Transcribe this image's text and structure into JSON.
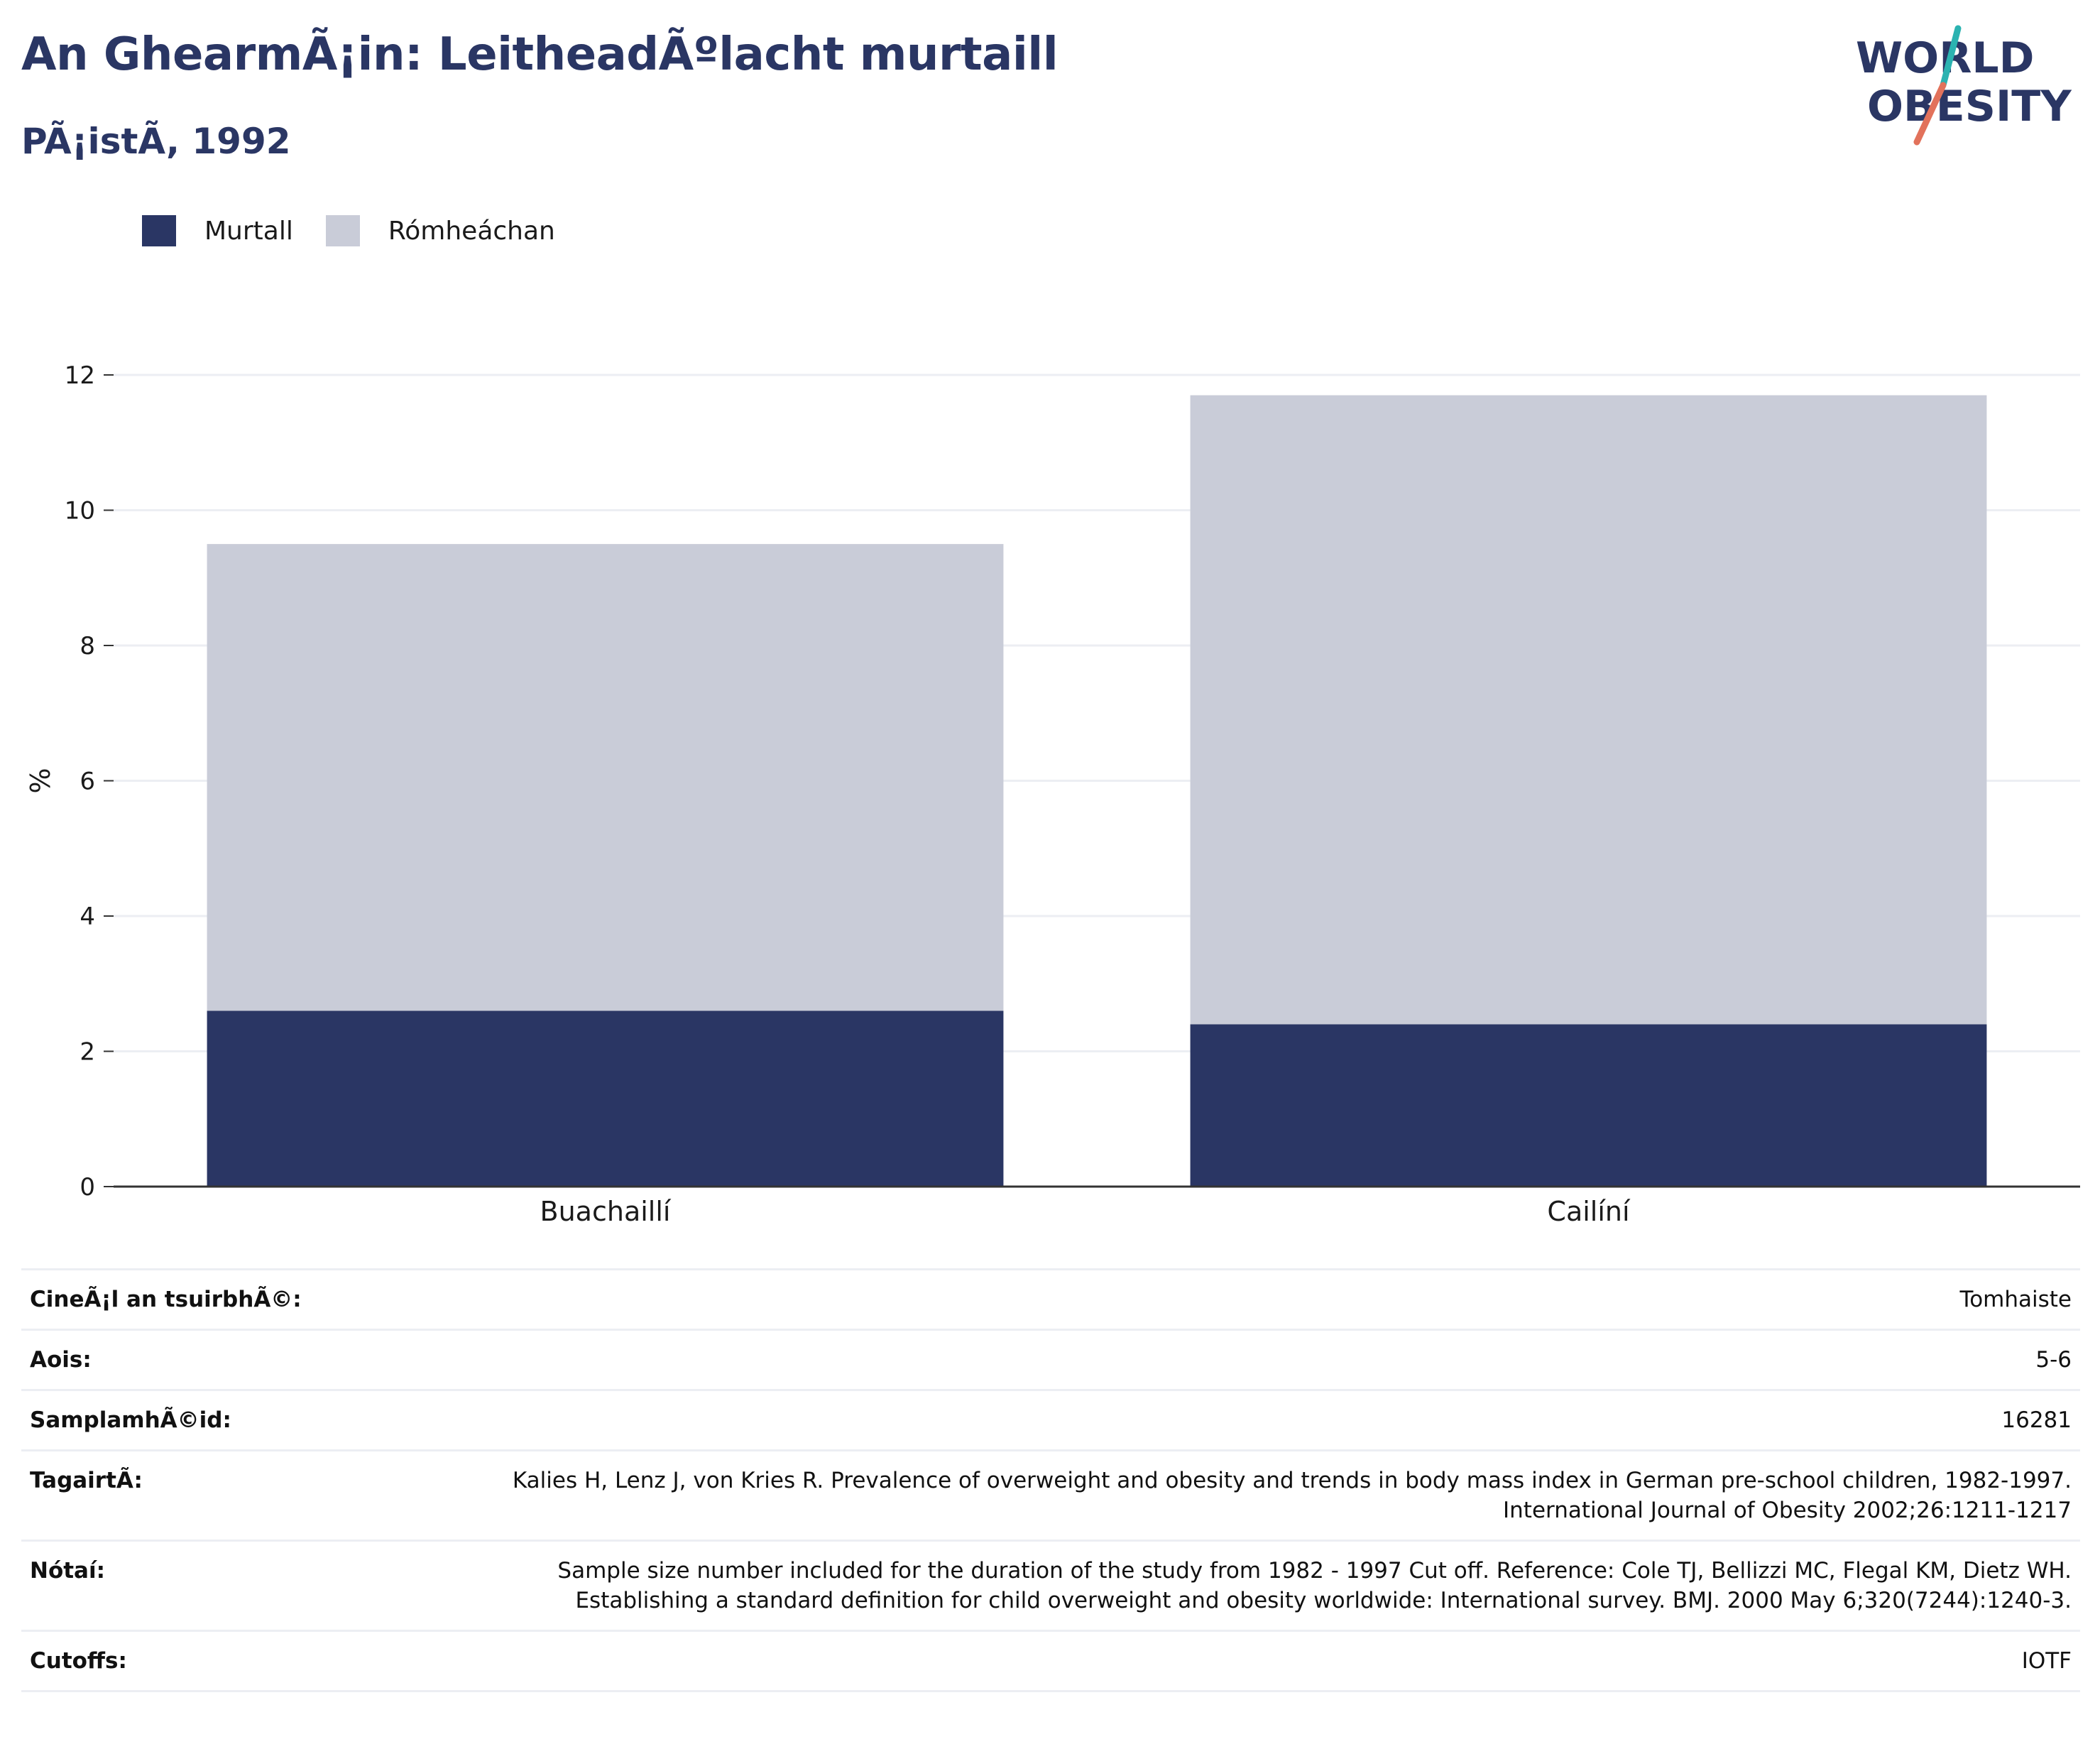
{
  "header": {
    "title": "An GhearmÃ¡in: LeitheadÃºlacht murtaill",
    "subtitle": "PÃ¡istÃ, 1992"
  },
  "logo": {
    "line1": "WORLD",
    "line2": "OBESITY",
    "text_color": "#2a3664",
    "slash_colors": [
      "#2bb3b1",
      "#e2725b"
    ]
  },
  "legend": [
    {
      "label": "Murtall",
      "color": "#2a3664"
    },
    {
      "label": "Rómheáchan",
      "color": "#c9ccd8"
    }
  ],
  "chart_data": {
    "type": "bar",
    "stacked": true,
    "categories": [
      "Buachaillí",
      "Cailíní"
    ],
    "series": [
      {
        "name": "Murtall",
        "color": "#2a3664",
        "values": [
          2.6,
          2.4
        ]
      },
      {
        "name": "Rómheáchan",
        "color": "#c9ccd8",
        "values": [
          6.9,
          9.3
        ]
      }
    ],
    "totals": [
      9.5,
      11.7
    ],
    "ylabel": "%",
    "xlabel": "",
    "ylim": [
      0,
      12
    ],
    "yticks": [
      0,
      2,
      4,
      6,
      8,
      10,
      12
    ],
    "grid": true,
    "legend_position": "top-left"
  },
  "info": [
    {
      "key": "CineÃ¡l an tsuirbhÃ©:",
      "value": "Tomhaiste"
    },
    {
      "key": "Aois:",
      "value": "5-6"
    },
    {
      "key": "SamplamhÃ©id:",
      "value": "16281"
    },
    {
      "key": "TagairtÃ:",
      "value": "Kalies H, Lenz J, von Kries R. Prevalence of overweight and obesity and trends in body mass index in German pre-school children, 1982-1997. International Journal of Obesity 2002;26:1211-1217"
    },
    {
      "key": "Nótaí:",
      "value": "Sample size number included for the duration of the study from 1982 - 1997 Cut off. Reference: Cole TJ, Bellizzi MC, Flegal KM, Dietz WH. Establishing a standard definition for child overweight and obesity worldwide: International survey. BMJ. 2000 May 6;320(7244):1240-3."
    },
    {
      "key": "Cutoffs:",
      "value": "IOTF"
    }
  ]
}
